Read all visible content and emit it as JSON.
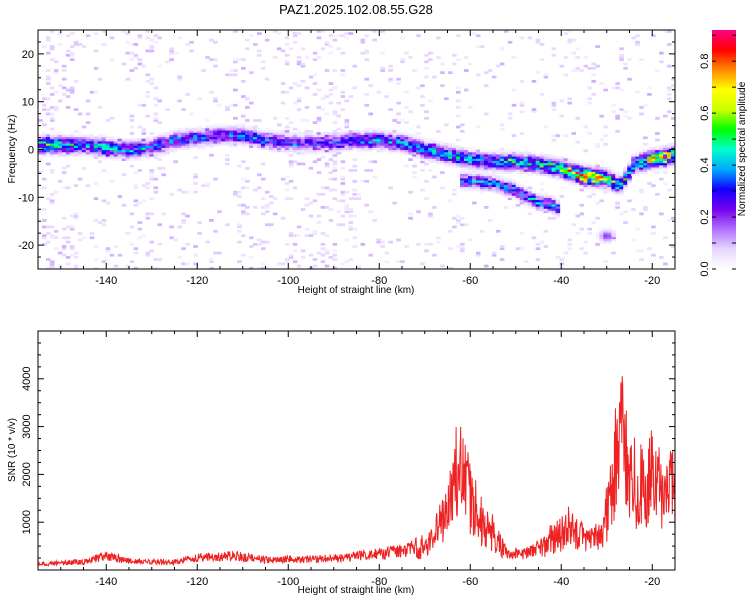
{
  "title": "PAZ1.2025.102.08.55.G28",
  "colors": {
    "snr_line": "#ee2222",
    "axis": "#000000",
    "background": "#ffffff"
  },
  "chart_data": [
    {
      "type": "heatmap",
      "xlabel": "Height of straight line (km)",
      "ylabel": "Frequency (Hz)",
      "xlim": [
        -155,
        -15
      ],
      "ylim": [
        -25,
        25
      ],
      "x_ticks": [
        -140,
        -120,
        -100,
        -80,
        -60,
        -40,
        -20
      ],
      "y_ticks": [
        -20,
        -10,
        0,
        10,
        20
      ],
      "colorbar": {
        "label": "Normalized spectral amplitude",
        "range": [
          0,
          0.92
        ],
        "ticks": [
          0,
          0.2,
          0.4,
          0.6,
          0.8
        ],
        "colormap": [
          "#ffffff",
          "#e6d6ff",
          "#b070ff",
          "#7700ee",
          "#1100ff",
          "#00aaff",
          "#00ffcc",
          "#00ff00",
          "#ccff00",
          "#ffff00",
          "#ff8800",
          "#ff0000",
          "#ff0088"
        ]
      },
      "ridge": [
        {
          "x": -155,
          "f": 1.0,
          "a": 0.45
        },
        {
          "x": -150,
          "f": 1.0,
          "a": 0.4
        },
        {
          "x": -145,
          "f": 1.0,
          "a": 0.35
        },
        {
          "x": -140,
          "f": 0.5,
          "a": 0.4
        },
        {
          "x": -135,
          "f": 0.0,
          "a": 0.3
        },
        {
          "x": -130,
          "f": 0.5,
          "a": 0.3
        },
        {
          "x": -125,
          "f": 2.0,
          "a": 0.3
        },
        {
          "x": -120,
          "f": 2.5,
          "a": 0.3
        },
        {
          "x": -115,
          "f": 3.0,
          "a": 0.3
        },
        {
          "x": -110,
          "f": 3.0,
          "a": 0.3
        },
        {
          "x": -105,
          "f": 2.0,
          "a": 0.3
        },
        {
          "x": -100,
          "f": 1.5,
          "a": 0.25
        },
        {
          "x": -95,
          "f": 1.5,
          "a": 0.25
        },
        {
          "x": -90,
          "f": 1.5,
          "a": 0.25
        },
        {
          "x": -85,
          "f": 2.0,
          "a": 0.3
        },
        {
          "x": -80,
          "f": 2.0,
          "a": 0.35
        },
        {
          "x": -75,
          "f": 1.5,
          "a": 0.35
        },
        {
          "x": -70,
          "f": 0.0,
          "a": 0.35
        },
        {
          "x": -65,
          "f": -1.0,
          "a": 0.4
        },
        {
          "x": -60,
          "f": -2.0,
          "a": 0.35
        },
        {
          "x": -55,
          "f": -2.5,
          "a": 0.35
        },
        {
          "x": -50,
          "f": -2.5,
          "a": 0.4
        },
        {
          "x": -45,
          "f": -3.0,
          "a": 0.4
        },
        {
          "x": -40,
          "f": -4.0,
          "a": 0.5
        },
        {
          "x": -35,
          "f": -5.5,
          "a": 0.8
        },
        {
          "x": -30,
          "f": -6.0,
          "a": 0.5
        },
        {
          "x": -27,
          "f": -7.5,
          "a": 0.4
        },
        {
          "x": -24,
          "f": -3.0,
          "a": 0.35
        },
        {
          "x": -20,
          "f": -2.0,
          "a": 0.6
        },
        {
          "x": -17,
          "f": -1.5,
          "a": 0.7
        },
        {
          "x": -15,
          "f": -1.0,
          "a": 0.5
        }
      ],
      "secondary_ridge": [
        {
          "x": -60,
          "f": -6.5,
          "a": 0.35
        },
        {
          "x": -55,
          "f": -7.0,
          "a": 0.35
        },
        {
          "x": -50,
          "f": -8.5,
          "a": 0.35
        },
        {
          "x": -45,
          "f": -11.0,
          "a": 0.35
        },
        {
          "x": -42,
          "f": -11.5,
          "a": 0.35
        },
        {
          "x": -30,
          "f": -18.0,
          "a": 0.25
        }
      ]
    },
    {
      "type": "line",
      "xlabel": "Height of straight line (km)",
      "ylabel": "SNR (10 * v/v)",
      "xlim": [
        -155,
        -15
      ],
      "ylim": [
        0,
        5000
      ],
      "x_ticks": [
        -140,
        -120,
        -100,
        -80,
        -60,
        -40,
        -20
      ],
      "y_ticks": [
        1000,
        2000,
        3000,
        4000
      ],
      "envelope": [
        {
          "x": -155,
          "y": 150
        },
        {
          "x": -145,
          "y": 200
        },
        {
          "x": -140,
          "y": 350
        },
        {
          "x": -135,
          "y": 220
        },
        {
          "x": -125,
          "y": 200
        },
        {
          "x": -120,
          "y": 300
        },
        {
          "x": -112,
          "y": 350
        },
        {
          "x": -105,
          "y": 250
        },
        {
          "x": -95,
          "y": 270
        },
        {
          "x": -88,
          "y": 300
        },
        {
          "x": -82,
          "y": 380
        },
        {
          "x": -78,
          "y": 420
        },
        {
          "x": -74,
          "y": 500
        },
        {
          "x": -70,
          "y": 700
        },
        {
          "x": -67,
          "y": 1200
        },
        {
          "x": -64,
          "y": 2300
        },
        {
          "x": -62,
          "y": 3000
        },
        {
          "x": -60,
          "y": 2000
        },
        {
          "x": -58,
          "y": 1400
        },
        {
          "x": -55,
          "y": 1000
        },
        {
          "x": -52,
          "y": 420
        },
        {
          "x": -48,
          "y": 400
        },
        {
          "x": -45,
          "y": 550
        },
        {
          "x": -42,
          "y": 900
        },
        {
          "x": -38,
          "y": 1200
        },
        {
          "x": -36,
          "y": 1050
        },
        {
          "x": -34,
          "y": 700
        },
        {
          "x": -31,
          "y": 1100
        },
        {
          "x": -29,
          "y": 2000
        },
        {
          "x": -27,
          "y": 4200
        },
        {
          "x": -26,
          "y": 3600
        },
        {
          "x": -24,
          "y": 2500
        },
        {
          "x": -22,
          "y": 2300
        },
        {
          "x": -20,
          "y": 2900
        },
        {
          "x": -18,
          "y": 2200
        },
        {
          "x": -15,
          "y": 2200
        }
      ]
    }
  ]
}
